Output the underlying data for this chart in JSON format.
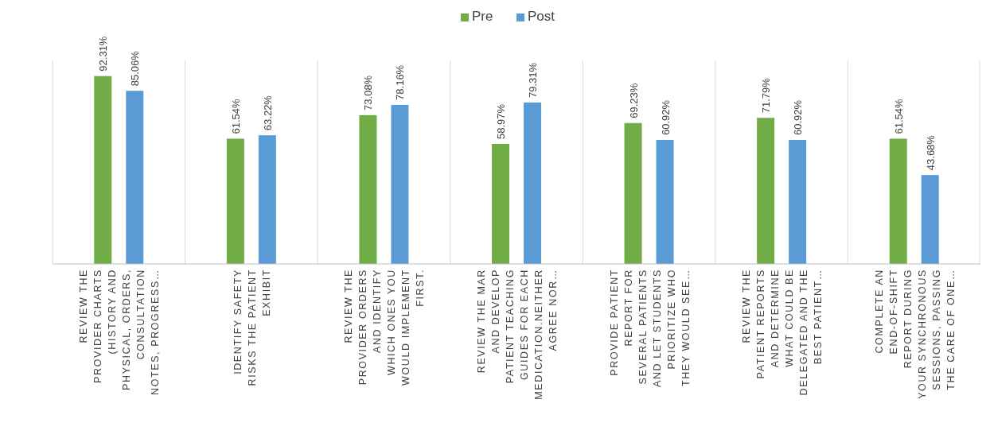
{
  "chart_data": {
    "type": "bar",
    "categories": [
      "REVIEW THE PROVIDER CHARTS (HISTORY AND PHYSICAL, ORDERS, CONSULTATION NOTES, PROGRESS…",
      "IDENTIFY SAFETY RISKS THE PATIENT EXHIBIT",
      "REVIEW THE PROVIDER ORDERS AND IDENTIFY WHICH ONES YOU WOULD IMPLEMENT FIRST.",
      "REVIEW THE MAR AND DEVELOP PATIENT TEACHING GUIDES FOR EACH MEDICATION.NEITHER AGREE NOR…",
      "PROVIDE PATIENT REPORT FOR SEVERAL PATIENTS AND LET STUDENTS PRIORITIZE WHO THEY WOULD SEE…",
      "REVIEW THE PATIENT REPORTS AND DETERMINE WHAT COULD BE DELEGATED AND THE BEST PATIENT…",
      "COMPLETE AN END-OF-SHIFT REPORT DURING YOUR SYNCHRONOUS SESSIONS, PASSING THE CARE OF ONE…"
    ],
    "series": [
      {
        "name": "Pre",
        "color": "#70ad47",
        "values": [
          92.31,
          61.54,
          73.08,
          58.97,
          69.23,
          71.79,
          61.54
        ],
        "value_labels": [
          "92.31%",
          "61.54%",
          "73.08%",
          "58.97%",
          "69.23%",
          "71.79%",
          "61.54%"
        ]
      },
      {
        "name": "Post",
        "color": "#5b9bd5",
        "values": [
          85.06,
          63.22,
          78.16,
          79.31,
          60.92,
          60.92,
          43.68
        ],
        "value_labels": [
          "85.06%",
          "63.22%",
          "78.16%",
          "79.31%",
          "60.92%",
          "60.92%",
          "43.68%"
        ]
      }
    ],
    "ylim": [
      0,
      100
    ],
    "grid": "x",
    "legend": "top"
  }
}
